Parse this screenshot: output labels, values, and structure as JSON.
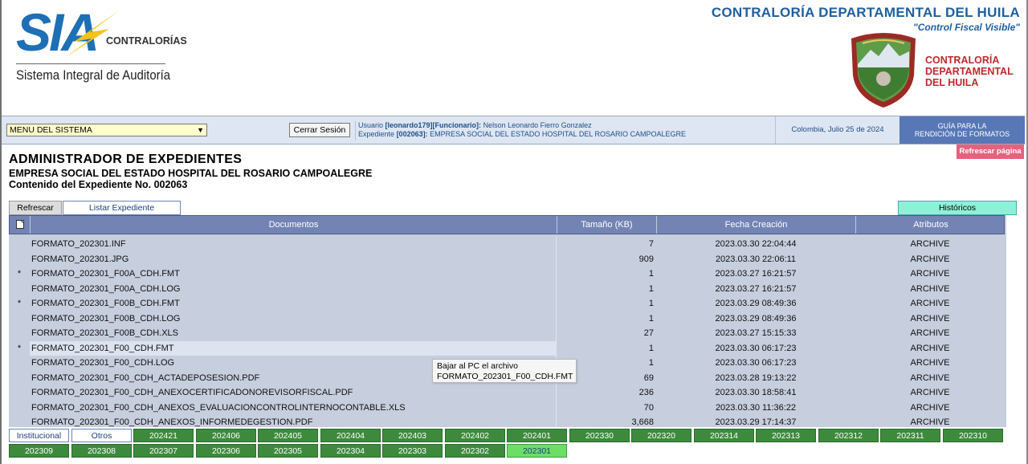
{
  "brand": {
    "logo_main": "SIA",
    "logo_tag": "CONTRALORÍAS",
    "logo_sub": "Sistema Integral de Auditoría",
    "org_name": "CONTRALORÍA DEPARTAMENTAL DEL HUILA",
    "org_slogan": "\"Control Fiscal Visible\"",
    "emblem_lines": [
      "CONTRALORÍA",
      "DEPARTAMENTAL",
      "DEL HUILA"
    ]
  },
  "topbar": {
    "menu_selected": "MENU DEL SISTEMA",
    "logout_label": "Cerrar Sesión",
    "user_prefix": "Usuario",
    "user_id": "[leonardo179][Funcionario]:",
    "user_name": "Nelson Leonardo Fierro Gonzalez",
    "exp_prefix": "Expediente",
    "exp_id": "[002063]:",
    "exp_name": "EMPRESA SOCIAL DEL ESTADO HOSPITAL DEL ROSARIO CAMPOALEGRE",
    "date": "Colombia, Julio 25 de 2024",
    "guide_line1": "GUÍA PARA LA",
    "guide_line2": "RENDICIÓN DE FORMATOS"
  },
  "refresh_page_label": "Refrescar página",
  "page": {
    "title": "ADMINISTRADOR DE EXPEDIENTES",
    "entity": "EMPRESA SOCIAL DEL ESTADO HOSPITAL DEL ROSARIO CAMPOALEGRE",
    "content": "Contenido del Expediente No. 002063"
  },
  "actions": {
    "refresh": "Refrescar",
    "list": "Listar Expediente",
    "history": "Históricos"
  },
  "table": {
    "columns": [
      "Documentos",
      "Tamaño (KB)",
      "Fecha Creación",
      "Atributos"
    ],
    "rows": [
      {
        "mark": "",
        "name": "FORMATO_202301.INF",
        "size": "7",
        "date": "2023.03.30 22:04:44",
        "attr": "ARCHIVE"
      },
      {
        "mark": "",
        "name": "FORMATO_202301.JPG",
        "size": "909",
        "date": "2023.03.30 22:06:11",
        "attr": "ARCHIVE"
      },
      {
        "mark": "*",
        "name": "FORMATO_202301_F00A_CDH.FMT",
        "size": "1",
        "date": "2023.03.27 16:21:57",
        "attr": "ARCHIVE"
      },
      {
        "mark": "",
        "name": "FORMATO_202301_F00A_CDH.LOG",
        "size": "1",
        "date": "2023.03.27 16:21:57",
        "attr": "ARCHIVE"
      },
      {
        "mark": "*",
        "name": "FORMATO_202301_F00B_CDH.FMT",
        "size": "1",
        "date": "2023.03.29 08:49:36",
        "attr": "ARCHIVE"
      },
      {
        "mark": "",
        "name": "FORMATO_202301_F00B_CDH.LOG",
        "size": "1",
        "date": "2023.03.29 08:49:36",
        "attr": "ARCHIVE"
      },
      {
        "mark": "",
        "name": "FORMATO_202301_F00B_CDH.XLS",
        "size": "27",
        "date": "2023.03.27 15:15:33",
        "attr": "ARCHIVE"
      },
      {
        "mark": "*",
        "name": "FORMATO_202301_F00_CDH.FMT",
        "size": "1",
        "date": "2023.03.30 06:17:23",
        "attr": "ARCHIVE"
      },
      {
        "mark": "",
        "name": "FORMATO_202301_F00_CDH.LOG",
        "size": "1",
        "date": "2023.03.30 06:17:23",
        "attr": "ARCHIVE"
      },
      {
        "mark": "",
        "name": "FORMATO_202301_F00_CDH_ACTADEPOSESION.PDF",
        "size": "69",
        "date": "2023.03.28 19:13:22",
        "attr": "ARCHIVE"
      },
      {
        "mark": "",
        "name": "FORMATO_202301_F00_CDH_ANEXOCERTIFICADONOREVISORFISCAL.PDF",
        "size": "236",
        "date": "2023.03.30 18:58:41",
        "attr": "ARCHIVE"
      },
      {
        "mark": "",
        "name": "FORMATO_202301_F00_CDH_ANEXOS_EVALUACIONCONTROLINTERNOCONTABLE.XLS",
        "size": "70",
        "date": "2023.03.30 11:36:22",
        "attr": "ARCHIVE"
      },
      {
        "mark": "",
        "name": "FORMATO_202301_F00_CDH_ANEXOS_INFORMEDEGESTION.PDF",
        "size": "3,668",
        "date": "2023.03.29 17:14:37",
        "attr": "ARCHIVE"
      }
    ]
  },
  "tooltip": {
    "line1": "Bajar al PC el archivo",
    "line2": "FORMATO_202301_F00_CDH.FMT"
  },
  "period_tabs": {
    "row1": [
      "Institucional",
      "Otros",
      "202421",
      "202406",
      "202405",
      "202404",
      "202403",
      "202402",
      "202401",
      "202330",
      "202320",
      "202314",
      "202313",
      "202312",
      "202311",
      "202310"
    ],
    "row2": [
      "202309",
      "202308",
      "202307",
      "202306",
      "202305",
      "202304",
      "202303",
      "202302",
      "202301"
    ],
    "active": "202301"
  },
  "colors": {
    "accent_blue": "#1f5f9e",
    "header_blue": "#7384b4",
    "tab_green": "#3d8a3d",
    "tab_active": "#6cde66",
    "refresh_pink": "#e8607e",
    "history_mint": "#8ff0d8"
  }
}
